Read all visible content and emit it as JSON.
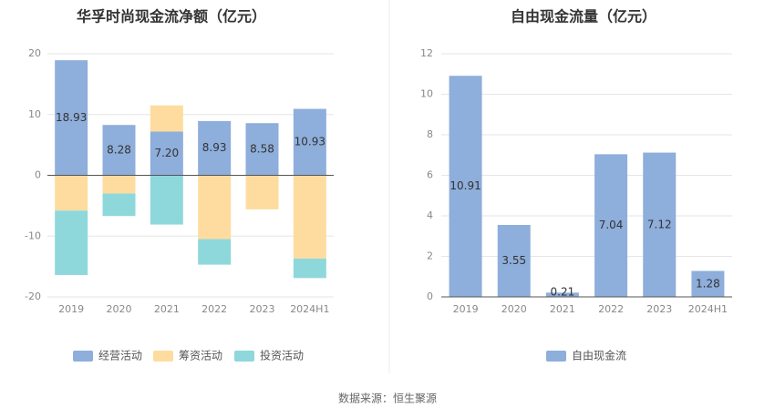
{
  "source": "数据来源：恒生聚源",
  "colors": {
    "operating": "#8eaedb",
    "financing": "#fedc9f",
    "investing": "#8ed8dc",
    "fcf": "#8eaedb",
    "grid": "#e6e6e6",
    "axis": "#555555"
  },
  "chart_data": [
    {
      "type": "bar",
      "stacked": true,
      "title": "华孚时尚现金流净额（亿元）",
      "categories": [
        "2019",
        "2020",
        "2021",
        "2022",
        "2023",
        "2024H1"
      ],
      "ylim": [
        -20,
        20
      ],
      "yticks": [
        20,
        10,
        0,
        -10,
        -20
      ],
      "grid": true,
      "legend_position": "bottom",
      "series": [
        {
          "name": "经营活动",
          "color_key": "operating",
          "values": [
            18.93,
            8.28,
            7.2,
            8.93,
            8.58,
            10.93
          ],
          "labels": [
            "18.93",
            "8.28",
            "7.20",
            "8.93",
            "8.58",
            "10.93"
          ]
        },
        {
          "name": "筹资活动",
          "color_key": "financing",
          "values": [
            -5.8,
            -3.0,
            4.3,
            -10.5,
            -5.6,
            -13.7
          ]
        },
        {
          "name": "投资活动",
          "color_key": "investing",
          "values": [
            -10.6,
            -3.7,
            -8.1,
            -4.2,
            0,
            -3.2
          ]
        }
      ]
    },
    {
      "type": "bar",
      "title": "自由现金流量（亿元）",
      "categories": [
        "2019",
        "2020",
        "2021",
        "2022",
        "2023",
        "2024H1"
      ],
      "ylim": [
        0,
        12
      ],
      "yticks": [
        12,
        10,
        8,
        6,
        4,
        2,
        0
      ],
      "grid": true,
      "legend_position": "bottom",
      "series": [
        {
          "name": "自由现金流",
          "color_key": "fcf",
          "values": [
            10.91,
            3.55,
            0.21,
            7.04,
            7.12,
            1.28
          ],
          "labels": [
            "10.91",
            "3.55",
            "0.21",
            "7.04",
            "7.12",
            "1.28"
          ]
        }
      ]
    }
  ]
}
